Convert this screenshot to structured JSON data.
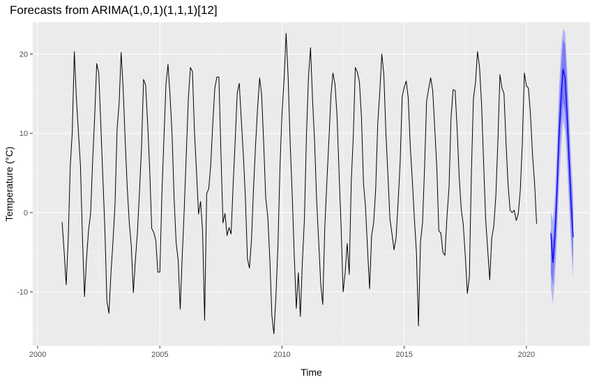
{
  "chart_data": {
    "type": "line",
    "title": "Forecasts from ARIMA(1,0,1)(1,1,1)[12]",
    "xlabel": "Time",
    "ylabel": "Temperature (°C)",
    "xlim": [
      1999.8,
      2022.6
    ],
    "ylim": [
      -16.8,
      24.0
    ],
    "x_ticks": [
      2000,
      2005,
      2010,
      2015,
      2020
    ],
    "y_ticks": [
      -10,
      0,
      10,
      20
    ],
    "grid": true,
    "legend": "none",
    "start": 2001.0,
    "frequency": 12,
    "series": [
      {
        "values": [
          -1.2,
          -4.9,
          -9.1,
          -3.5,
          5.8,
          10.2,
          20.3,
          14.5,
          10.2,
          6.0,
          -3.2,
          -10.6,
          -5.8,
          -2.2,
          -0.1,
          6.5,
          12.1,
          18.8,
          17.6,
          11.2,
          4.5,
          -2.0,
          -11.2,
          -12.7,
          -7.6,
          -3.6,
          1.1,
          10.5,
          13.8,
          20.2,
          15.5,
          9.0,
          3.1,
          -1.3,
          -4.3,
          -10.1,
          -6.0,
          -2.5,
          2.6,
          8.2,
          16.8,
          16.1,
          11.3,
          5.5,
          -2.0,
          -2.5,
          -3.5,
          -7.5,
          -7.5,
          2.3,
          9.3,
          16.2,
          18.7,
          14.8,
          9.9,
          1.8,
          -3.8,
          -6.0,
          -12.2,
          -5.5,
          0.5,
          7.5,
          14.4,
          18.3,
          17.8,
          10.2,
          5.2,
          -0.2,
          1.4,
          -2.4,
          -13.6,
          2.4,
          3.0,
          6.0,
          11.3,
          15.7,
          17.1,
          17.1,
          7.5,
          -1.3,
          -0.1,
          -2.9,
          -1.9,
          -2.7,
          3.5,
          9.1,
          15.1,
          16.3,
          11.7,
          7.3,
          1.9,
          -5.8,
          -7.0,
          -3.5,
          3.0,
          8.5,
          13.2,
          17.0,
          14.8,
          8.7,
          1.8,
          -0.5,
          -5.8,
          -13.0,
          -15.3,
          -10.6,
          -4.1,
          5.8,
          12.6,
          16.8,
          22.6,
          17.1,
          8.8,
          2.3,
          -5.4,
          -12.1,
          -7.6,
          -13.1,
          -6.2,
          -0.8,
          9.8,
          17.2,
          20.8,
          14.2,
          8.9,
          1.5,
          -3.6,
          -9.0,
          -11.6,
          -1.9,
          3.8,
          9.0,
          14.7,
          17.6,
          16.2,
          12.3,
          5.1,
          -1.7,
          -10.0,
          -7.6,
          -3.9,
          -7.8,
          4.0,
          9.6,
          18.3,
          17.7,
          16.5,
          12.1,
          3.7,
          0.7,
          -4.7,
          -9.6,
          -2.9,
          -1.3,
          3.0,
          11.2,
          15.2,
          20.0,
          17.4,
          10.1,
          4.8,
          -0.8,
          -2.7,
          -4.7,
          -3.2,
          1.3,
          6.3,
          14.6,
          15.8,
          16.6,
          14.4,
          8.2,
          4.0,
          -0.8,
          -5.0,
          -14.3,
          -3.7,
          -1.3,
          5.7,
          14.1,
          15.6,
          17.0,
          15.4,
          10.6,
          5.7,
          -2.3,
          -2.6,
          -5.0,
          -5.4,
          -0.5,
          3.1,
          12.0,
          15.5,
          15.4,
          10.5,
          4.5,
          0.4,
          -1.5,
          -5.5,
          -10.2,
          -8.1,
          5.2,
          14.4,
          16.4,
          20.3,
          18.3,
          13.6,
          6.2,
          -0.9,
          -4.7,
          -8.5,
          -3.2,
          -1.7,
          2.1,
          9.0,
          17.4,
          15.7,
          15.0,
          8.8,
          3.5,
          0.3,
          0.0,
          0.3,
          -1.0,
          -0.2,
          2.8,
          8.8,
          17.6,
          16.0,
          15.7,
          12.4,
          7.3,
          3.8,
          -1.4
        ]
      }
    ],
    "forecast": {
      "start": 2021.0,
      "frequency": 12,
      "mean": [
        -2.6,
        -6.3,
        -3.0,
        2.5,
        9.7,
        14.2,
        18.1,
        17.0,
        12.2,
        6.5,
        0.9,
        -3.1
      ],
      "lo80": [
        -7.6,
        -9.2,
        -5.9,
        -0.7,
        6.0,
        10.6,
        14.0,
        12.6,
        8.5,
        3.0,
        -2.4,
        -6.3
      ],
      "hi80": [
        -2.0,
        -3.5,
        -0.4,
        5.6,
        13.0,
        17.9,
        21.9,
        21.2,
        16.0,
        10.1,
        4.3,
        0.1
      ],
      "lo95": [
        -9.5,
        -11.5,
        -8.5,
        -3.5,
        3.4,
        7.9,
        11.6,
        10.3,
        6.1,
        0.5,
        -4.8,
        -8.3
      ],
      "hi95": [
        0.1,
        -1.0,
        2.2,
        8.4,
        15.8,
        20.6,
        23.2,
        22.8,
        18.4,
        12.5,
        6.7,
        2.2
      ],
      "colors": {
        "mean": "#0000ff",
        "band80": "#7c7cf0",
        "band95": "#b4b4f6"
      }
    },
    "colors": {
      "line": "#000000",
      "panel": "#ebebeb",
      "grid_major": "#ffffff",
      "grid_minor": "#f5f5f5",
      "tick_label": "#4d4d4d"
    }
  }
}
